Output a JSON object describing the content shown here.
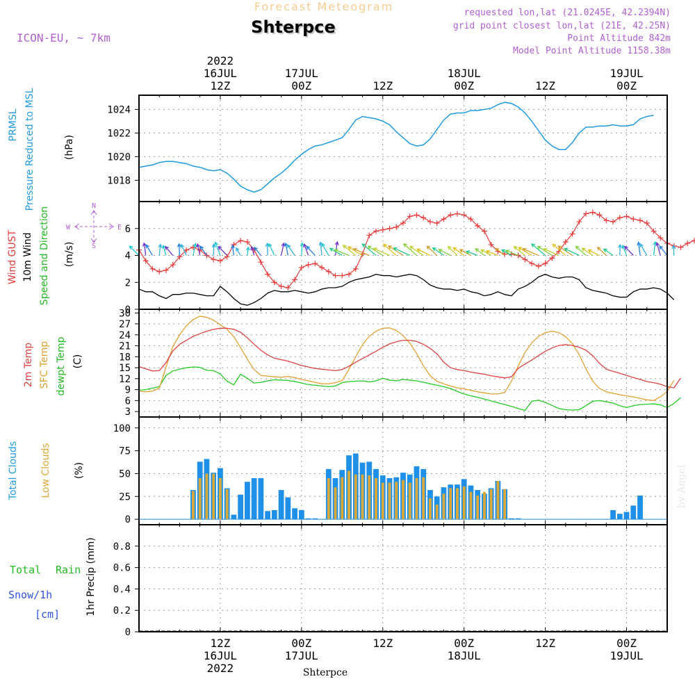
{
  "header": {
    "super_title": "Forecast Meteogram",
    "location": "Shterpce",
    "model": "ICON-EU, ~ 7km",
    "requested": "requested lon,lat (21.0245E, 42.2394N)",
    "grid_point": "grid point closest lon,lat (21E, 42.25N)",
    "point_altitude": "Point Altitude 842m",
    "model_altitude": "Model Point Altitude 1158.38m"
  },
  "top_axis": [
    {
      "lines": [
        "2022",
        "16JUL",
        "12Z"
      ],
      "t": 12
    },
    {
      "lines": [
        "17JUL",
        "00Z"
      ],
      "t": 24
    },
    {
      "lines": [
        "12Z"
      ],
      "t": 36
    },
    {
      "lines": [
        "18JUL",
        "00Z"
      ],
      "t": 48
    },
    {
      "lines": [
        "12Z"
      ],
      "t": 60
    },
    {
      "lines": [
        "19JUL",
        "00Z"
      ],
      "t": 72
    }
  ],
  "bottom_axis": [
    {
      "lines": [
        "12Z",
        "16JUL",
        "2022"
      ],
      "t": 12
    },
    {
      "lines": [
        "00Z",
        "17JUL"
      ],
      "t": 24
    },
    {
      "lines": [
        "12Z"
      ],
      "t": 36
    },
    {
      "lines": [
        "00Z",
        "18JUL"
      ],
      "t": 48
    },
    {
      "lines": [
        "12Z"
      ],
      "t": 60
    },
    {
      "lines": [
        "00Z",
        "19JUL"
      ],
      "t": 72
    }
  ],
  "footer_location": "Shterpce",
  "credit": "by Angel",
  "panel_labels": {
    "pressure": {
      "l1": "PRMSL",
      "l2": "Pressure Reduced to MSL",
      "unit": "(hPa)"
    },
    "wind": {
      "l1": "Wind GUST",
      "l2": "10m Wind",
      "l3": "Speed and Direction",
      "unit": "(m/s)"
    },
    "compass": {
      "n": "N",
      "s": "S",
      "w": "W",
      "e": "E"
    },
    "temp": {
      "l1": "2m Temp",
      "l2": "SFC Temp",
      "l3": "dewpt Temp",
      "unit": "(C)"
    },
    "cloud": {
      "l1": "Total Clouds",
      "l2": "Low Clouds",
      "unit": "(%)"
    },
    "precip": {
      "l1": "Total",
      "l1b": "Rain",
      "l2": "Snow/1h",
      "l3": "[cm]",
      "axis": "1hr Precip (mm)"
    }
  },
  "colors": {
    "pressure": "#1e9be0",
    "gust": "#e83a3a",
    "wind": "#000000",
    "temp2m": "#e04040",
    "sfc": "#e0a030",
    "dewpt": "#22cc22",
    "total_cloud": "#1e90e8",
    "low_cloud": "#d8a838",
    "label_purple": "#b060d0",
    "label_blue": "#3050e0",
    "label_green": "#22bb22"
  },
  "chart_data": [
    {
      "type": "line",
      "name": "pressure",
      "x_range": [
        0,
        78
      ],
      "ylim": [
        1016.2,
        1025.2
      ],
      "yticks": [
        1018,
        1020,
        1022,
        1024
      ],
      "series": [
        {
          "name": "PRMSL",
          "values": [
            1019.1,
            1019.2,
            1019.3,
            1019.5,
            1019.6,
            1019.6,
            1019.5,
            1019.4,
            1019.2,
            1019.1,
            1018.9,
            1018.8,
            1018.9,
            1018.6,
            1018.1,
            1017.5,
            1017.2,
            1017.0,
            1017.2,
            1017.7,
            1018.2,
            1018.6,
            1019.1,
            1019.7,
            1020.2,
            1020.6,
            1020.9,
            1021.0,
            1021.2,
            1021.4,
            1021.6,
            1022.3,
            1023.1,
            1023.4,
            1023.3,
            1023.2,
            1023.0,
            1022.7,
            1022.1,
            1021.6,
            1021.1,
            1020.9,
            1021.0,
            1021.5,
            1022.3,
            1023.1,
            1023.6,
            1023.7,
            1023.7,
            1023.9,
            1023.9,
            1024.0,
            1024.1,
            1024.4,
            1024.6,
            1024.5,
            1024.2,
            1023.7,
            1023.0,
            1022.2,
            1021.4,
            1020.9,
            1020.6,
            1020.6,
            1021.2,
            1022.0,
            1022.5,
            1022.5,
            1022.6,
            1022.6,
            1022.7,
            1022.6,
            1022.6,
            1022.7,
            1023.2,
            1023.4,
            1023.5
          ]
        }
      ]
    },
    {
      "type": "line",
      "name": "wind",
      "x_range": [
        0,
        78
      ],
      "ylim": [
        0,
        8
      ],
      "yticks": [
        0,
        2,
        4,
        6
      ],
      "series": [
        {
          "name": "Wind GUST",
          "values": [
            4.4,
            3.6,
            3.0,
            2.8,
            2.9,
            3.3,
            3.9,
            4.4,
            4.6,
            4.4,
            4.0,
            3.7,
            3.6,
            3.9,
            4.8,
            5.1,
            5.0,
            4.4,
            3.5,
            2.6,
            2.0,
            1.7,
            1.6,
            2.2,
            3.1,
            3.3,
            3.4,
            3.1,
            2.8,
            2.5,
            2.5,
            2.6,
            3.0,
            4.1,
            5.5,
            5.8,
            5.9,
            6.0,
            6.1,
            6.4,
            6.9,
            7.0,
            6.8,
            6.5,
            6.4,
            6.7,
            7.0,
            7.1,
            7.0,
            6.7,
            6.2,
            5.8,
            4.8,
            4.3,
            4.1,
            4.1,
            4.0,
            3.7,
            3.4,
            3.2,
            3.4,
            3.8,
            4.3,
            5.0,
            5.6,
            6.5,
            7.1,
            7.2,
            7.0,
            6.6,
            6.5,
            6.8,
            6.9,
            6.7,
            6.6,
            6.4,
            5.8,
            5.3,
            4.9,
            4.7,
            4.6,
            4.9,
            5.1,
            5.0,
            4.6,
            4.2
          ]
        },
        {
          "name": "10m Wind",
          "values": [
            1.5,
            1.3,
            1.3,
            1.0,
            0.8,
            1.1,
            1.1,
            1.2,
            1.2,
            1.1,
            1.0,
            1.0,
            1.7,
            1.3,
            0.8,
            0.4,
            0.3,
            0.5,
            0.8,
            1.2,
            1.4,
            1.3,
            1.3,
            1.4,
            1.3,
            1.2,
            1.3,
            1.5,
            1.6,
            1.6,
            1.7,
            2.0,
            2.2,
            2.3,
            2.4,
            2.6,
            2.5,
            2.5,
            2.4,
            2.5,
            2.6,
            2.5,
            2.2,
            1.8,
            1.6,
            1.5,
            1.5,
            1.4,
            1.5,
            1.3,
            1.2,
            1.0,
            1.1,
            1.3,
            1.1,
            1.0,
            1.5,
            1.7,
            2.0,
            2.4,
            2.6,
            2.4,
            2.3,
            2.4,
            2.4,
            2.2,
            1.6,
            1.4,
            1.3,
            1.2,
            1.0,
            0.9,
            0.9,
            1.3,
            1.5,
            1.5,
            1.6,
            1.5,
            1.2,
            0.7
          ]
        }
      ]
    },
    {
      "type": "line",
      "name": "temperature",
      "x_range": [
        0,
        78
      ],
      "ylim": [
        1.5,
        31
      ],
      "yticks": [
        3,
        6,
        9,
        12,
        15,
        18,
        21,
        24,
        27,
        30
      ],
      "series": [
        {
          "name": "2m Temp",
          "values": [
            15.3,
            14.7,
            14.1,
            14.2,
            16.4,
            19.6,
            21.4,
            22.5,
            23.6,
            24.3,
            25.0,
            25.5,
            25.8,
            25.8,
            25.5,
            24.7,
            23.2,
            21.4,
            19.8,
            18.5,
            17.6,
            17.2,
            16.8,
            16.2,
            15.6,
            15.2,
            14.8,
            14.6,
            14.4,
            14.2,
            14.5,
            15.4,
            16.5,
            17.5,
            18.5,
            19.5,
            20.6,
            21.5,
            22.1,
            22.5,
            22.5,
            22.2,
            21.4,
            20.3,
            18.8,
            16.5,
            15.0,
            14.5,
            14.2,
            13.8,
            13.5,
            13.2,
            12.8,
            12.5,
            12.2,
            12.5,
            14.8,
            16.0,
            17.1,
            18.3,
            19.5,
            20.4,
            21.1,
            21.3,
            21.1,
            20.6,
            19.8,
            18.3,
            16.2,
            14.6,
            14.0,
            13.5,
            12.9,
            12.3,
            11.8,
            11.2,
            10.9,
            10.5,
            9.8,
            9.5,
            12.2
          ]
        },
        {
          "name": "SFC Temp",
          "values": [
            8.5,
            8.4,
            8.6,
            9.4,
            15.2,
            20.8,
            24.0,
            26.5,
            28.2,
            29.1,
            28.8,
            28.0,
            26.8,
            25.5,
            23.5,
            20.5,
            17.3,
            14.5,
            12.9,
            12.7,
            12.5,
            12.4,
            12.6,
            12.3,
            11.8,
            11.4,
            11.0,
            10.6,
            10.6,
            10.9,
            11.5,
            14.5,
            18.0,
            21.3,
            23.6,
            25.0,
            25.8,
            25.9,
            25.2,
            23.8,
            21.7,
            18.9,
            15.5,
            12.8,
            11.3,
            10.6,
            10.0,
            9.5,
            9.2,
            8.8,
            8.4,
            8.1,
            7.8,
            7.8,
            8.2,
            11.3,
            15.5,
            19.2,
            21.8,
            23.6,
            24.6,
            25.0,
            24.6,
            23.5,
            21.6,
            18.6,
            14.7,
            11.3,
            9.3,
            8.4,
            8.0,
            7.6,
            7.3,
            7.0,
            6.6,
            6.2,
            6.0,
            7.0,
            8.5,
            11.5
          ]
        },
        {
          "name": "dewpt Temp",
          "values": [
            8.8,
            9.0,
            9.4,
            9.8,
            12.9,
            14.1,
            14.6,
            15.0,
            15.2,
            15.1,
            14.3,
            14.2,
            13.3,
            11.3,
            10.3,
            13.2,
            12.1,
            10.8,
            11.0,
            11.4,
            11.7,
            11.6,
            11.5,
            11.2,
            10.8,
            10.4,
            10.2,
            10.0,
            9.8,
            10.0,
            10.9,
            11.2,
            11.3,
            11.4,
            11.1,
            11.4,
            12.1,
            11.6,
            11.4,
            11.8,
            11.6,
            11.4,
            11.0,
            10.6,
            10.2,
            9.8,
            9.3,
            8.5,
            7.8,
            7.3,
            6.9,
            6.4,
            5.9,
            5.4,
            4.9,
            4.4,
            3.8,
            3.3,
            5.8,
            6.1,
            5.5,
            4.7,
            3.8,
            3.5,
            3.4,
            3.5,
            4.6,
            5.8,
            6.0,
            5.7,
            5.3,
            4.6,
            4.1,
            4.6,
            4.9,
            5.0,
            5.1,
            4.8,
            4.1,
            5.2,
            6.8
          ]
        }
      ]
    },
    {
      "type": "bar",
      "name": "clouds",
      "x_range": [
        0,
        78
      ],
      "ylim": [
        -6,
        112
      ],
      "yticks": [
        0,
        25,
        50,
        75,
        100
      ],
      "series": [
        {
          "name": "Total Clouds",
          "x": [
            8,
            9,
            10,
            11,
            12,
            13,
            14,
            15,
            16,
            17,
            18,
            19,
            20,
            21,
            22,
            23,
            24,
            25,
            26,
            28,
            29,
            30,
            31,
            32,
            33,
            34,
            35,
            36,
            37,
            38,
            39,
            40,
            41,
            42,
            43,
            44,
            45,
            46,
            47,
            48,
            49,
            50,
            51,
            52,
            53,
            54,
            55,
            56,
            63,
            64,
            65,
            66,
            67,
            68,
            70,
            71,
            72,
            73,
            74,
            75,
            76
          ],
          "values": [
            32,
            63,
            66,
            51,
            56,
            34,
            5,
            27,
            41,
            45,
            45,
            9,
            10,
            32,
            24,
            12,
            10,
            1,
            1,
            55,
            45,
            54,
            70,
            72,
            62,
            63,
            55,
            48,
            45,
            46,
            51,
            49,
            58,
            55,
            32,
            25,
            35,
            38,
            38,
            44,
            37,
            32,
            28,
            34,
            42,
            33,
            1,
            1,
            0,
            0,
            0,
            0,
            0,
            0,
            10,
            6,
            8,
            15,
            26,
            0,
            0
          ]
        },
        {
          "name": "Low Clouds",
          "x": [
            8,
            9,
            10,
            11,
            12,
            13,
            14,
            15,
            16,
            17,
            18,
            19,
            20,
            21,
            22,
            23,
            24,
            25,
            26,
            28,
            29,
            30,
            31,
            32,
            33,
            34,
            35,
            36,
            37,
            38,
            39,
            40,
            41,
            42,
            43,
            44,
            45,
            46,
            47,
            48,
            49,
            50,
            51,
            52,
            53,
            54,
            55,
            56
          ],
          "values": [
            31,
            45,
            50,
            50,
            45,
            33,
            0,
            0,
            0,
            0,
            0,
            0,
            0,
            0,
            0,
            0,
            0,
            0,
            0,
            45,
            35,
            46,
            53,
            49,
            49,
            48,
            45,
            40,
            40,
            41,
            43,
            40,
            45,
            46,
            23,
            16,
            28,
            34,
            34,
            36,
            30,
            26,
            30,
            33,
            42,
            33,
            0,
            0
          ]
        }
      ]
    },
    {
      "type": "line",
      "name": "precipitation",
      "x_range": [
        0,
        78
      ],
      "ylim": [
        0,
        1.0
      ],
      "yticks": [
        0,
        0.2,
        0.4,
        0.6,
        0.8
      ],
      "ytick_labels": [
        "0",
        "0.2",
        "0.4",
        "0.6",
        "0.8"
      ],
      "series": [
        {
          "name": "Total Rain",
          "values": []
        }
      ]
    }
  ]
}
